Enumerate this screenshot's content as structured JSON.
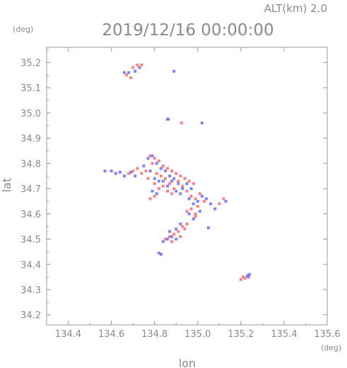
{
  "header": {
    "title": "2019/12/16 00:00:00",
    "altitude_label": "ALT(km) 2.0",
    "ylabel_unit": "(deg)",
    "xlabel_unit": "(deg)"
  },
  "chart_data": {
    "type": "scatter",
    "xlabel": "lon",
    "ylabel": "lat",
    "xlim": [
      134.3,
      135.6
    ],
    "ylim": [
      34.16,
      35.26
    ],
    "x_ticks": [
      134.4,
      134.6,
      134.8,
      135.0,
      135.2,
      135.4,
      135.6
    ],
    "x_tick_labels": [
      "134.4",
      "134.6",
      "134.8",
      "135.0",
      "135.2",
      "135.4",
      "135.6"
    ],
    "y_ticks": [
      34.2,
      34.3,
      34.4,
      34.5,
      34.6,
      34.7,
      34.8,
      34.9,
      35.0,
      35.1,
      35.2
    ],
    "y_tick_labels": [
      "34.2",
      "34.3",
      "34.4",
      "34.5",
      "34.6",
      "34.7",
      "34.8",
      "34.9",
      "35.0",
      "35.1",
      "35.2"
    ],
    "grid": false,
    "colors": {
      "positive": "#ff6b6b",
      "negative": "#6b6bff",
      "frame": "#9a9a9a",
      "text": "#8a8a8a"
    },
    "series": [
      {
        "color": "#ff6b6b",
        "points": [
          [
            134.72,
            35.19
          ],
          [
            134.74,
            35.19
          ],
          [
            134.7,
            35.18
          ],
          [
            134.67,
            35.15
          ],
          [
            134.69,
            35.14
          ],
          [
            134.865,
            34.975
          ],
          [
            134.925,
            34.96
          ],
          [
            134.78,
            34.83
          ],
          [
            134.8,
            34.82
          ],
          [
            134.82,
            34.81
          ],
          [
            134.79,
            34.8
          ],
          [
            134.84,
            34.79
          ],
          [
            134.86,
            34.78
          ],
          [
            134.88,
            34.77
          ],
          [
            134.9,
            34.76
          ],
          [
            134.92,
            34.75
          ],
          [
            134.94,
            34.74
          ],
          [
            134.96,
            34.73
          ],
          [
            134.98,
            34.72
          ],
          [
            134.83,
            34.75
          ],
          [
            134.85,
            34.74
          ],
          [
            134.87,
            34.72
          ],
          [
            134.89,
            34.7
          ],
          [
            134.91,
            34.73
          ],
          [
            134.93,
            34.71
          ],
          [
            134.86,
            34.69
          ],
          [
            134.88,
            34.68
          ],
          [
            134.76,
            34.77
          ],
          [
            134.74,
            34.76
          ],
          [
            134.72,
            34.78
          ],
          [
            134.7,
            34.77
          ],
          [
            134.68,
            34.76
          ],
          [
            134.81,
            34.76
          ],
          [
            134.95,
            34.69
          ],
          [
            134.97,
            34.67
          ],
          [
            134.99,
            34.66
          ],
          [
            135.01,
            34.68
          ],
          [
            135.03,
            34.65
          ],
          [
            134.84,
            34.71
          ],
          [
            134.82,
            34.7
          ],
          [
            134.8,
            34.72
          ],
          [
            134.77,
            34.74
          ],
          [
            134.99,
            34.6
          ],
          [
            134.97,
            34.62
          ],
          [
            134.95,
            34.61
          ],
          [
            135.0,
            34.63
          ],
          [
            134.93,
            34.55
          ],
          [
            134.95,
            34.56
          ],
          [
            134.91,
            34.53
          ],
          [
            134.89,
            34.52
          ],
          [
            134.87,
            34.51
          ],
          [
            134.85,
            34.5
          ],
          [
            134.88,
            34.49
          ],
          [
            134.92,
            34.51
          ],
          [
            134.94,
            34.54
          ],
          [
            135.2,
            34.34
          ],
          [
            135.21,
            34.35
          ],
          [
            135.22,
            34.345
          ],
          [
            134.8,
            34.67
          ],
          [
            134.78,
            34.66
          ],
          [
            134.99,
            34.59
          ],
          [
            135.1,
            34.64
          ],
          [
            135.12,
            34.66
          ]
        ]
      },
      {
        "color": "#6b6bff",
        "points": [
          [
            134.66,
            35.16
          ],
          [
            134.68,
            35.16
          ],
          [
            134.71,
            35.165
          ],
          [
            134.73,
            35.18
          ],
          [
            134.89,
            35.165
          ],
          [
            134.86,
            34.975
          ],
          [
            135.02,
            34.96
          ],
          [
            134.77,
            34.82
          ],
          [
            134.79,
            34.83
          ],
          [
            134.81,
            34.8
          ],
          [
            134.83,
            34.78
          ],
          [
            134.85,
            34.77
          ],
          [
            134.87,
            34.75
          ],
          [
            134.89,
            34.74
          ],
          [
            134.91,
            34.72
          ],
          [
            134.93,
            34.7
          ],
          [
            134.95,
            34.72
          ],
          [
            134.97,
            34.7
          ],
          [
            134.84,
            34.73
          ],
          [
            134.86,
            34.71
          ],
          [
            134.88,
            34.73
          ],
          [
            134.9,
            34.69
          ],
          [
            134.92,
            34.68
          ],
          [
            134.6,
            34.77
          ],
          [
            134.62,
            34.76
          ],
          [
            134.64,
            34.765
          ],
          [
            134.66,
            34.75
          ],
          [
            134.69,
            34.765
          ],
          [
            134.71,
            34.75
          ],
          [
            134.75,
            34.79
          ],
          [
            134.78,
            34.77
          ],
          [
            134.8,
            34.74
          ],
          [
            134.82,
            34.73
          ],
          [
            134.96,
            34.66
          ],
          [
            134.98,
            34.64
          ],
          [
            135.0,
            34.65
          ],
          [
            135.02,
            34.67
          ],
          [
            135.04,
            34.66
          ],
          [
            135.06,
            34.64
          ],
          [
            134.96,
            34.6
          ],
          [
            134.98,
            34.58
          ],
          [
            135.01,
            34.61
          ],
          [
            134.9,
            34.54
          ],
          [
            134.92,
            34.56
          ],
          [
            134.88,
            34.51
          ],
          [
            134.86,
            34.5
          ],
          [
            134.84,
            34.49
          ],
          [
            134.87,
            34.53
          ],
          [
            134.9,
            34.5
          ],
          [
            134.82,
            34.445
          ],
          [
            134.83,
            34.44
          ],
          [
            135.23,
            34.355
          ],
          [
            135.24,
            34.36
          ],
          [
            135.235,
            34.35
          ],
          [
            134.57,
            34.77
          ],
          [
            134.79,
            34.69
          ],
          [
            134.81,
            34.68
          ],
          [
            135.08,
            34.62
          ],
          [
            135.13,
            34.65
          ],
          [
            135.05,
            34.545
          ]
        ]
      }
    ]
  }
}
